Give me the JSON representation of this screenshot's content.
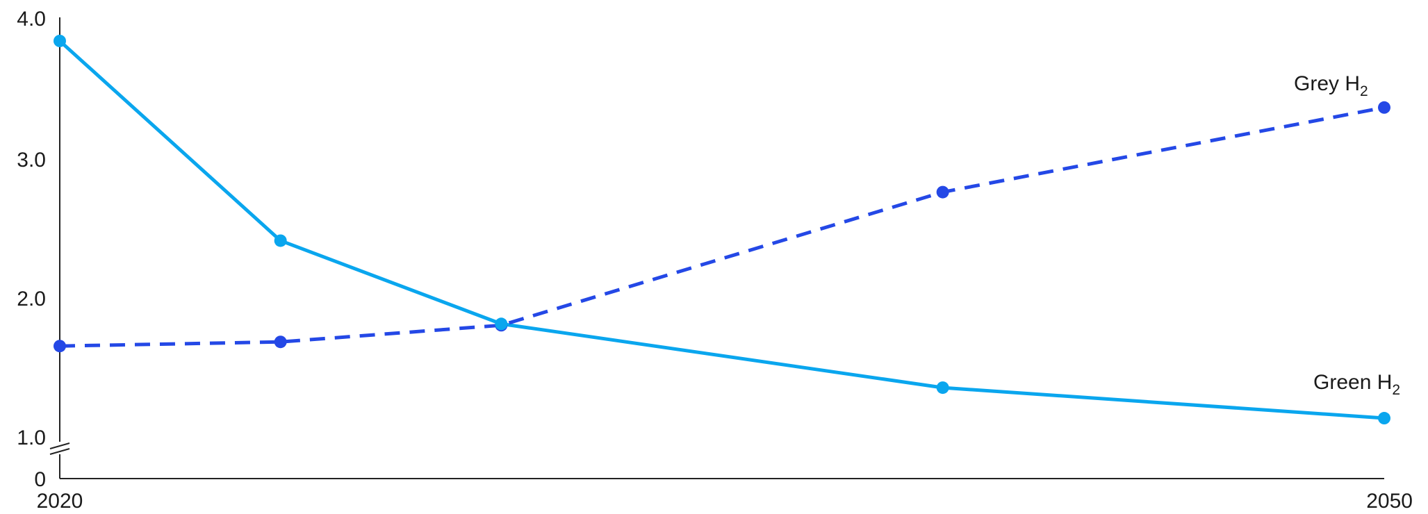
{
  "chart_data": {
    "type": "line",
    "x": [
      2020,
      2025,
      2030,
      2040,
      2050
    ],
    "xticks": [
      "2020",
      "2050"
    ],
    "yticks": [
      "0",
      "1.0",
      "2.0",
      "3.0",
      "4.0"
    ],
    "ylim": [
      1.0,
      4.0
    ],
    "y_axis_break": true,
    "grid": false,
    "series": [
      {
        "name": "Green H",
        "subscript": "2",
        "values": [
          3.83,
          2.39,
          1.79,
          1.33,
          1.11
        ],
        "color": "#0aa6ee",
        "style": "solid"
      },
      {
        "name": "Grey H",
        "subscript": "2",
        "values": [
          1.63,
          1.66,
          1.78,
          2.74,
          3.35
        ],
        "color": "#2448e6",
        "style": "dashed"
      }
    ]
  }
}
